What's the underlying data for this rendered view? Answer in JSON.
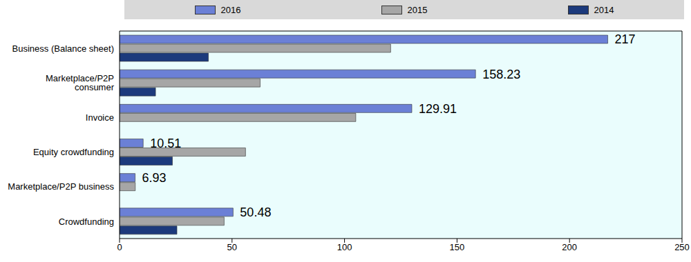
{
  "chart_data": {
    "type": "bar",
    "orientation": "horizontal",
    "categories": [
      "Business (Balance sheet)",
      "Marketplace/P2P consumer",
      "Invoice",
      "Equity crowdfunding",
      "Marketplace/P2P business",
      "Crowdfunding"
    ],
    "series": [
      {
        "name": "2016",
        "color": "#6b80d6",
        "data_labels": true,
        "values": [
          217,
          158.23,
          129.91,
          10.51,
          6.93,
          50.48
        ]
      },
      {
        "name": "2015",
        "color": "#a6a6a6",
        "values": [
          120.5,
          62.5,
          105,
          56,
          7,
          46.5
        ]
      },
      {
        "name": "2014",
        "color": "#1c3a7c",
        "values": [
          39.5,
          16,
          null,
          23.5,
          null,
          25.5
        ]
      }
    ],
    "xlim": [
      0,
      250
    ],
    "xticks": [
      0,
      50,
      100,
      150,
      200,
      250
    ],
    "grid": false,
    "legend": "top"
  }
}
